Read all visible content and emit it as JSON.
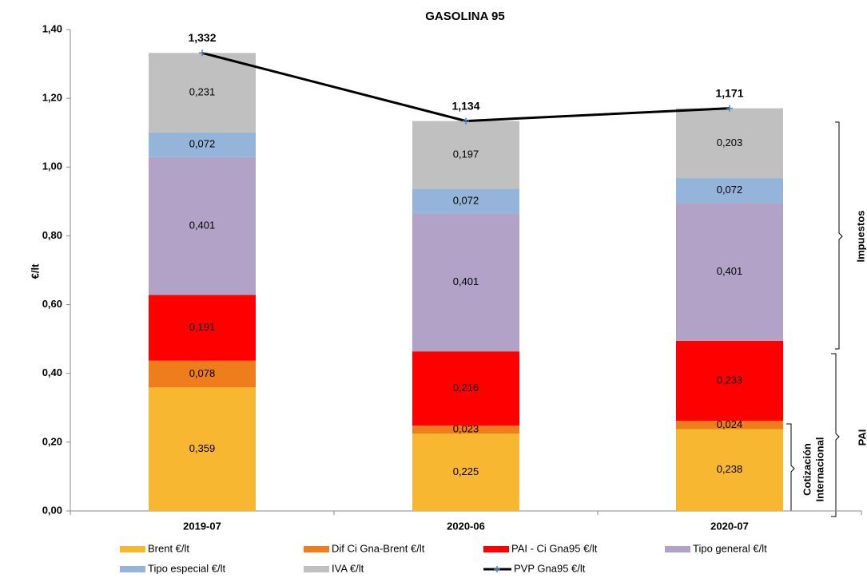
{
  "chart_data": {
    "type": "bar",
    "stacked": true,
    "title": "GASOLINA 95",
    "ylabel": "€/lt",
    "categories": [
      "2019-07",
      "2020-06",
      "2020-07"
    ],
    "ylim": [
      0,
      1.4
    ],
    "yticks": [
      {
        "value": 0,
        "label": "0,00"
      },
      {
        "value": 0.2,
        "label": "0,20"
      },
      {
        "value": 0.4,
        "label": "0,40"
      },
      {
        "value": 0.6,
        "label": "0,60"
      },
      {
        "value": 0.8,
        "label": "0,80"
      },
      {
        "value": 1.0,
        "label": "1,00"
      },
      {
        "value": 1.2,
        "label": "1,20"
      },
      {
        "value": 1.4,
        "label": "1,40"
      }
    ],
    "series": [
      {
        "name": "Brent €/lt",
        "color": "#f8b731",
        "values": [
          0.359,
          0.225,
          0.238
        ],
        "value_labels": [
          "0,359",
          "0,225",
          "0,238"
        ]
      },
      {
        "name": "Dif Ci Gna-Brent €/lt",
        "color": "#ee7d1b",
        "values": [
          0.078,
          0.023,
          0.024
        ],
        "value_labels": [
          "0,078",
          "0,023",
          "0,024"
        ]
      },
      {
        "name": "PAI - Ci Gna95 €/lt",
        "color": "#fe0000",
        "values": [
          0.191,
          0.216,
          0.233
        ],
        "value_labels": [
          "0,191",
          "0,216",
          "0,233"
        ]
      },
      {
        "name": "Tipo general €/lt",
        "color": "#b2a2c8",
        "values": [
          0.401,
          0.401,
          0.401
        ],
        "value_labels": [
          "0,401",
          "0,401",
          "0,401"
        ]
      },
      {
        "name": "Tipo especial €/lt",
        "color": "#95b4da",
        "values": [
          0.072,
          0.072,
          0.072
        ],
        "value_labels": [
          "0,072",
          "0,072",
          "0,072"
        ]
      },
      {
        "name": "IVA €/lt",
        "color": "#c0c0c0",
        "values": [
          0.231,
          0.197,
          0.203
        ],
        "value_labels": [
          "0,231",
          "0,197",
          "0,203"
        ]
      },
      {
        "name": "PVP Gna95 €/lt",
        "type": "line",
        "color": "#000000",
        "marker_color": "#4f81bd",
        "values": [
          1.332,
          1.134,
          1.171
        ],
        "value_labels": [
          "1,332",
          "1,134",
          "1,171"
        ]
      }
    ],
    "annotations": {
      "impuestos": "Impuestos",
      "pai": "PAI",
      "cotizacion": [
        "Cotización",
        "Internacional"
      ]
    }
  }
}
